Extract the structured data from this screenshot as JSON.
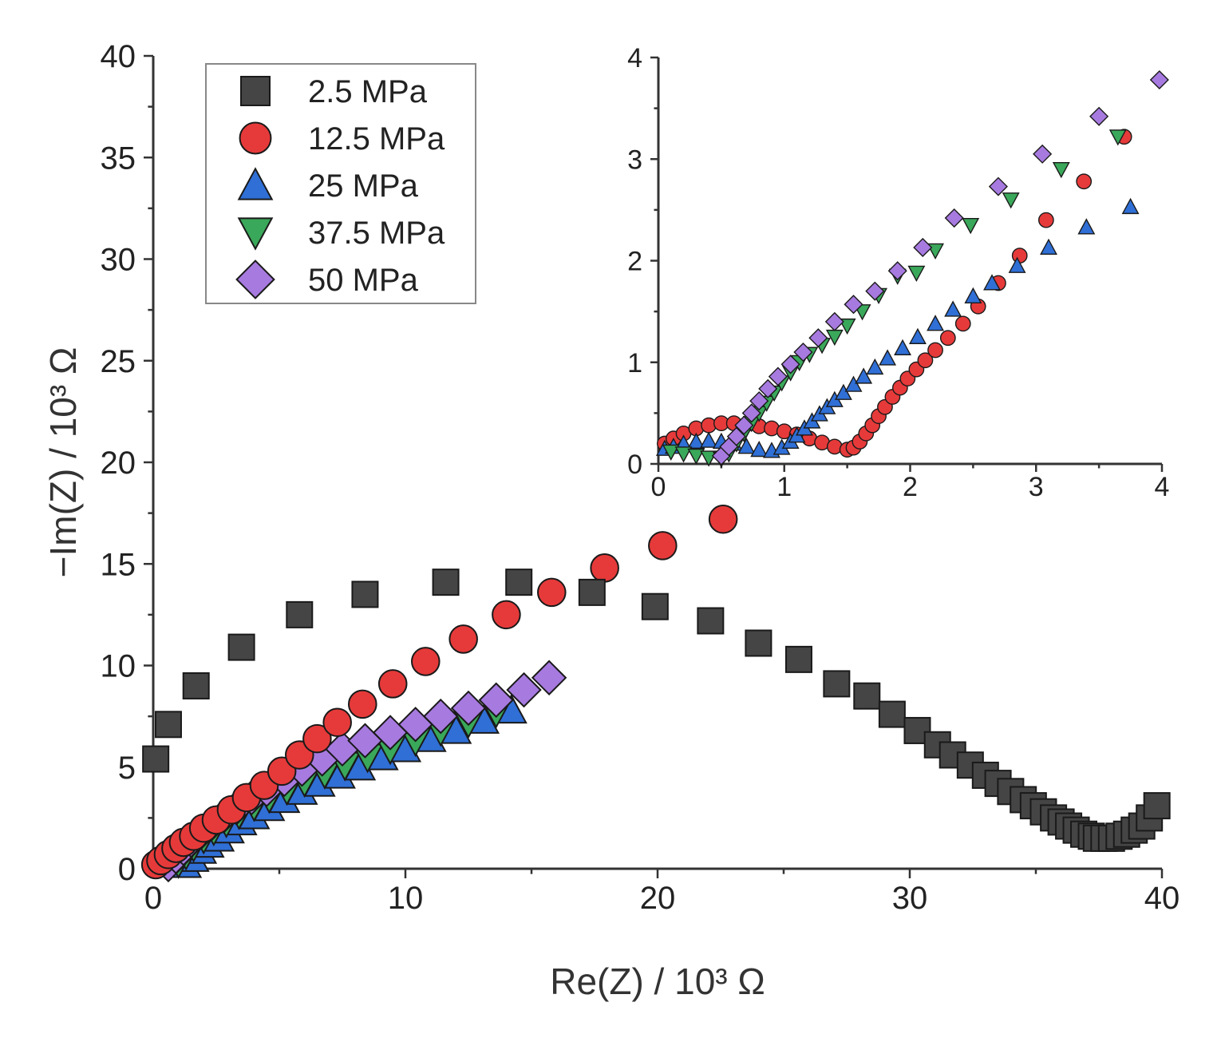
{
  "chart_data": [
    {
      "type": "scatter",
      "title": "",
      "xlabel": "Re(Z) / 10³ Ω",
      "ylabel": "−Im(Z) / 10³ Ω",
      "xlim": [
        0,
        40
      ],
      "ylim": [
        0,
        40
      ],
      "xticks": [
        "0",
        "10",
        "20",
        "30",
        "40"
      ],
      "yticks": [
        "0",
        "5",
        "10",
        "15",
        "20",
        "25",
        "30",
        "35",
        "40"
      ],
      "grid": false,
      "legend_position": "top-left",
      "series": [
        {
          "name": "2.5 MPa",
          "marker": "square",
          "color": "#454545",
          "x": [
            0.1,
            0.6,
            1.7,
            3.5,
            5.8,
            8.4,
            11.6,
            14.5,
            17.4,
            19.9,
            22.1,
            24.0,
            25.6,
            27.1,
            28.3,
            29.3,
            30.3,
            31.1,
            31.7,
            32.4,
            33.0,
            33.5,
            34.0,
            34.5,
            34.9,
            35.3,
            35.7,
            36.0,
            36.3,
            36.6,
            36.9,
            37.2,
            37.4,
            37.7,
            38.0,
            38.3,
            38.6,
            38.9,
            39.2,
            39.5,
            39.8
          ],
          "y": [
            5.4,
            7.1,
            9.0,
            10.9,
            12.5,
            13.5,
            14.1,
            14.1,
            13.6,
            12.9,
            12.2,
            11.1,
            10.3,
            9.1,
            8.5,
            7.6,
            6.8,
            6.1,
            5.6,
            5.1,
            4.6,
            4.2,
            3.8,
            3.4,
            3.1,
            2.8,
            2.5,
            2.3,
            2.1,
            1.9,
            1.7,
            1.6,
            1.5,
            1.5,
            1.5,
            1.6,
            1.7,
            1.9,
            2.1,
            2.5,
            3.1
          ]
        },
        {
          "name": "12.5 MPa",
          "marker": "circle",
          "color": "#e63a3a",
          "x": [
            0.1,
            0.3,
            0.6,
            0.9,
            1.2,
            1.6,
            2.0,
            2.5,
            3.1,
            3.7,
            4.4,
            5.1,
            5.8,
            6.5,
            7.3,
            8.3,
            9.5,
            10.8,
            12.3,
            14.0,
            15.8,
            17.9,
            20.2,
            22.6
          ],
          "y": [
            0.2,
            0.4,
            0.7,
            1.0,
            1.3,
            1.6,
            2.0,
            2.4,
            2.9,
            3.5,
            4.1,
            4.8,
            5.6,
            6.4,
            7.2,
            8.1,
            9.1,
            10.2,
            11.3,
            12.5,
            13.6,
            14.8,
            15.9,
            17.2
          ]
        },
        {
          "name": "25 MPa",
          "marker": "triangle-up",
          "color": "#2f6fd6",
          "x": [
            1.3,
            1.6,
            1.9,
            2.2,
            2.6,
            3.0,
            3.5,
            4.0,
            4.6,
            5.2,
            5.9,
            6.6,
            7.4,
            8.2,
            9.1,
            10.0,
            11.0,
            12.0,
            13.1,
            14.2
          ],
          "y": [
            0.2,
            0.5,
            0.9,
            1.2,
            1.5,
            1.9,
            2.3,
            2.6,
            3.0,
            3.4,
            3.8,
            4.2,
            4.6,
            5.0,
            5.5,
            5.9,
            6.4,
            6.8,
            7.3,
            7.8
          ]
        },
        {
          "name": "37.5 MPa",
          "marker": "triangle-down",
          "color": "#3aa85a",
          "x": [
            1.0,
            1.3,
            1.6,
            2.0,
            2.4,
            2.9,
            3.4,
            4.0,
            4.6,
            5.3,
            6.0,
            6.8,
            7.6,
            8.5,
            9.4,
            10.4,
            11.4,
            12.5,
            13.6
          ],
          "y": [
            0.3,
            0.7,
            1.1,
            1.5,
            1.9,
            2.3,
            2.7,
            3.1,
            3.5,
            3.9,
            4.3,
            4.7,
            5.1,
            5.5,
            5.9,
            6.3,
            6.8,
            7.2,
            7.7
          ]
        },
        {
          "name": "50 MPa",
          "marker": "diamond",
          "color": "#a77ae0",
          "x": [
            0.6,
            0.9,
            1.2,
            1.5,
            1.9,
            2.3,
            2.8,
            3.3,
            3.9,
            4.5,
            5.2,
            5.9,
            6.7,
            7.5,
            8.4,
            9.4,
            10.4,
            11.4,
            12.5,
            13.6,
            14.7,
            15.7
          ],
          "y": [
            0.2,
            0.6,
            1.0,
            1.4,
            1.8,
            2.2,
            2.6,
            3.0,
            3.5,
            3.9,
            4.4,
            4.9,
            5.4,
            5.9,
            6.3,
            6.7,
            7.1,
            7.5,
            7.9,
            8.3,
            8.8,
            9.4
          ]
        }
      ]
    },
    {
      "type": "scatter",
      "title": "",
      "xlabel": "",
      "ylabel": "",
      "xlim": [
        0,
        4
      ],
      "ylim": [
        0,
        4
      ],
      "xticks": [
        "0",
        "1",
        "2",
        "3",
        "4"
      ],
      "yticks": [
        "0",
        "1",
        "2",
        "3",
        "4"
      ],
      "grid": false,
      "legend_position": "none",
      "series": [
        {
          "marker": "circle",
          "color": "#e63a3a",
          "x": [
            0.05,
            0.12,
            0.2,
            0.3,
            0.4,
            0.5,
            0.6,
            0.7,
            0.8,
            0.9,
            1.0,
            1.1,
            1.2,
            1.3,
            1.4,
            1.5,
            1.55,
            1.6,
            1.65,
            1.7,
            1.75,
            1.8,
            1.86,
            1.92,
            1.98,
            2.05,
            2.12,
            2.2,
            2.3,
            2.42,
            2.54,
            2.7,
            2.87,
            3.08,
            3.38,
            3.7
          ],
          "y": [
            0.2,
            0.25,
            0.3,
            0.35,
            0.38,
            0.4,
            0.4,
            0.39,
            0.37,
            0.35,
            0.32,
            0.29,
            0.25,
            0.21,
            0.17,
            0.14,
            0.16,
            0.22,
            0.3,
            0.38,
            0.47,
            0.56,
            0.66,
            0.75,
            0.84,
            0.93,
            1.02,
            1.12,
            1.24,
            1.38,
            1.55,
            1.78,
            2.05,
            2.4,
            2.78,
            3.22
          ]
        },
        {
          "marker": "triangle-up",
          "color": "#2f6fd6",
          "x": [
            0.05,
            0.12,
            0.2,
            0.3,
            0.4,
            0.5,
            0.6,
            0.7,
            0.8,
            0.9,
            0.98,
            1.05,
            1.1,
            1.16,
            1.22,
            1.28,
            1.34,
            1.4,
            1.47,
            1.55,
            1.63,
            1.72,
            1.82,
            1.94,
            2.06,
            2.2,
            2.34,
            2.5,
            2.65,
            2.85,
            3.1,
            3.4,
            3.75
          ],
          "y": [
            0.15,
            0.17,
            0.2,
            0.22,
            0.23,
            0.22,
            0.2,
            0.17,
            0.14,
            0.13,
            0.16,
            0.22,
            0.28,
            0.35,
            0.42,
            0.49,
            0.56,
            0.63,
            0.7,
            0.78,
            0.86,
            0.95,
            1.04,
            1.14,
            1.25,
            1.38,
            1.52,
            1.65,
            1.78,
            1.95,
            2.13,
            2.33,
            2.53
          ]
        },
        {
          "marker": "triangle-down",
          "color": "#3aa85a",
          "x": [
            0.1,
            0.2,
            0.3,
            0.4,
            0.5,
            0.56,
            0.62,
            0.68,
            0.74,
            0.8,
            0.86,
            0.92,
            0.98,
            1.05,
            1.12,
            1.2,
            1.3,
            1.4,
            1.5,
            1.62,
            1.75,
            1.9,
            2.05,
            2.2,
            2.48,
            2.8,
            3.2,
            3.65
          ],
          "y": [
            0.12,
            0.1,
            0.08,
            0.06,
            0.05,
            0.1,
            0.2,
            0.3,
            0.4,
            0.5,
            0.6,
            0.7,
            0.8,
            0.9,
            1.0,
            1.08,
            1.17,
            1.25,
            1.36,
            1.5,
            1.66,
            1.85,
            1.88,
            2.1,
            2.35,
            2.6,
            2.9,
            3.22
          ]
        },
        {
          "marker": "diamond",
          "color": "#a77ae0",
          "x": [
            0.5,
            0.56,
            0.62,
            0.68,
            0.74,
            0.8,
            0.87,
            0.95,
            1.05,
            1.15,
            1.27,
            1.4,
            1.55,
            1.72,
            1.9,
            2.1,
            2.35,
            2.7,
            3.05,
            3.5,
            3.98
          ],
          "y": [
            0.08,
            0.17,
            0.27,
            0.38,
            0.5,
            0.62,
            0.74,
            0.86,
            0.98,
            1.1,
            1.24,
            1.4,
            1.57,
            1.7,
            1.9,
            2.13,
            2.42,
            2.73,
            3.05,
            3.42,
            3.78
          ]
        }
      ]
    }
  ]
}
